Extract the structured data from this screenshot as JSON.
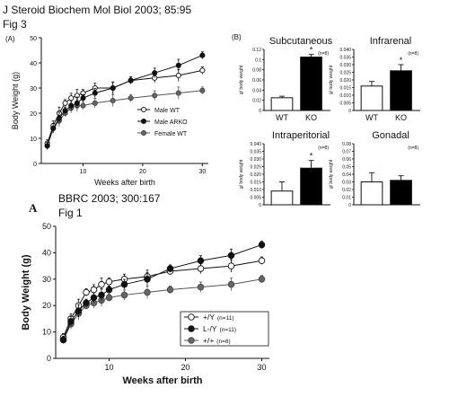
{
  "captions": {
    "fig3_citation": "J Steroid Biochem Mol Biol 2003; 85:95",
    "fig3_label": "Fig 3",
    "fig1_citation": "BBRC 2003; 300:167",
    "fig1_label": "Fig 1",
    "panel_a_top": "(A)",
    "panel_b_top": "(B)",
    "panel_a_bottom": "A"
  },
  "colors": {
    "male_wt": "#ffffff",
    "male_arko": "#111111",
    "female_wt": "#666666",
    "bar_wt": "#ffffff",
    "bar_ko": "#000000",
    "axis": "#111111"
  },
  "chart_data": [
    {
      "id": "fig3a",
      "type": "line",
      "title": "",
      "xlabel": "Weeks after birth",
      "ylabel": "Body Weight (g)",
      "xlim": [
        3,
        31
      ],
      "ylim": [
        0,
        50
      ],
      "xticks": [
        10,
        20,
        30
      ],
      "yticks": [
        0,
        10,
        20,
        30,
        40,
        50
      ],
      "legend_position": "bottom-right",
      "series": [
        {
          "name": "Male WT",
          "marker": "open",
          "x": [
            4,
            5,
            6,
            7,
            8,
            9,
            10,
            12,
            15,
            18,
            22,
            26,
            30
          ],
          "y": [
            8,
            15,
            20,
            24,
            26,
            27,
            28,
            30,
            30,
            33,
            34,
            35,
            37
          ]
        },
        {
          "name": "Male ARKO",
          "marker": "filled",
          "x": [
            4,
            5,
            6,
            7,
            8,
            9,
            10,
            12,
            15,
            18,
            22,
            26,
            30
          ],
          "y": [
            7,
            14,
            18,
            21,
            23,
            24,
            26,
            28,
            30,
            33,
            36,
            39,
            43
          ]
        },
        {
          "name": "Female WT",
          "marker": "gray",
          "x": [
            4,
            5,
            6,
            7,
            8,
            9,
            10,
            12,
            15,
            18,
            22,
            26,
            30
          ],
          "y": [
            7,
            14,
            17,
            20,
            22,
            23,
            23,
            24,
            25,
            26,
            27,
            28,
            29
          ]
        }
      ]
    },
    {
      "id": "fig3b_subcutaneous",
      "type": "bar",
      "title": "Subcutaneous",
      "ylabel": "g/ body weight",
      "categories": [
        "WT",
        "KO"
      ],
      "values": [
        0.025,
        0.105
      ],
      "errors": [
        0.003,
        0.005
      ],
      "ylim": [
        0,
        0.12
      ],
      "yticks": [
        "0",
        "0.02",
        "0.04",
        "0.06",
        "0.08",
        "0.1",
        "0.12"
      ],
      "note": "(n=8)",
      "significance": [
        "",
        "*"
      ]
    },
    {
      "id": "fig3b_infrarenal",
      "type": "bar",
      "title": "Infrarenal",
      "ylabel": "g/ body weight",
      "categories": [
        "WT",
        "KO"
      ],
      "values": [
        0.016,
        0.026
      ],
      "errors": [
        0.003,
        0.004
      ],
      "ylim": [
        0,
        0.04
      ],
      "yticks": [
        "0",
        "0.005",
        "0.010",
        "0.015",
        "0.020",
        "0.025",
        "0.030",
        "0.035",
        "0.040"
      ],
      "note": "(n=8)",
      "significance": [
        "",
        "*"
      ]
    },
    {
      "id": "fig3b_intraperitorial",
      "type": "bar",
      "title": "Intraperitorial",
      "ylabel": "g/ body weight",
      "categories": [
        "WT",
        "KO"
      ],
      "values": [
        0.009,
        0.024
      ],
      "errors": [
        0.006,
        0.005
      ],
      "ylim": [
        0,
        0.04
      ],
      "yticks": [
        "0",
        "0.005",
        "0.010",
        "0.015",
        "0.020",
        "0.025",
        "0.030",
        "0.035",
        "0.040"
      ],
      "note": "(n=8)",
      "significance": [
        "",
        "*"
      ]
    },
    {
      "id": "fig3b_gonadal",
      "type": "bar",
      "title": "Gonadal",
      "ylabel": "g/ body weight",
      "categories": [
        "WT",
        "KO"
      ],
      "values": [
        0.03,
        0.032
      ],
      "errors": [
        0.012,
        0.006
      ],
      "ylim": [
        0,
        0.08
      ],
      "yticks": [
        "0",
        "0.01",
        "0.02",
        "0.03",
        "0.04",
        "0.05",
        "0.06",
        "0.07",
        "0.08"
      ],
      "note": "(n=8)",
      "significance": [
        "",
        ""
      ]
    },
    {
      "id": "fig1a",
      "type": "line",
      "title": "",
      "xlabel": "Weeks after birth",
      "ylabel": "Body Weight (g)",
      "xlim": [
        3,
        31
      ],
      "ylim": [
        0,
        50
      ],
      "xticks": [
        10,
        20,
        30
      ],
      "yticks": [
        0,
        10,
        20,
        30,
        40,
        50
      ],
      "legend_position": "bottom-right",
      "series": [
        {
          "name": "+/Y",
          "count": "(n=11)",
          "marker": "open",
          "x": [
            4,
            5,
            6,
            7,
            8,
            9,
            10,
            12,
            15,
            18,
            22,
            26,
            30
          ],
          "y": [
            8,
            15,
            20,
            25,
            26,
            28,
            29,
            30,
            31,
            33,
            34,
            35,
            37
          ]
        },
        {
          "name": "L-/Y",
          "count": "(n=11)",
          "marker": "filled",
          "x": [
            4,
            5,
            6,
            7,
            8,
            9,
            10,
            12,
            15,
            18,
            22,
            26,
            30
          ],
          "y": [
            7,
            14,
            18,
            21,
            23,
            24,
            26,
            28,
            30,
            34,
            37,
            39,
            43
          ]
        },
        {
          "name": "+/+",
          "count": "(n=8)",
          "marker": "gray",
          "x": [
            4,
            5,
            6,
            7,
            8,
            9,
            10,
            12,
            15,
            18,
            22,
            26,
            30
          ],
          "y": [
            7,
            13,
            17,
            20,
            21,
            22,
            23,
            24,
            25,
            26,
            27,
            28,
            30
          ]
        }
      ]
    }
  ]
}
